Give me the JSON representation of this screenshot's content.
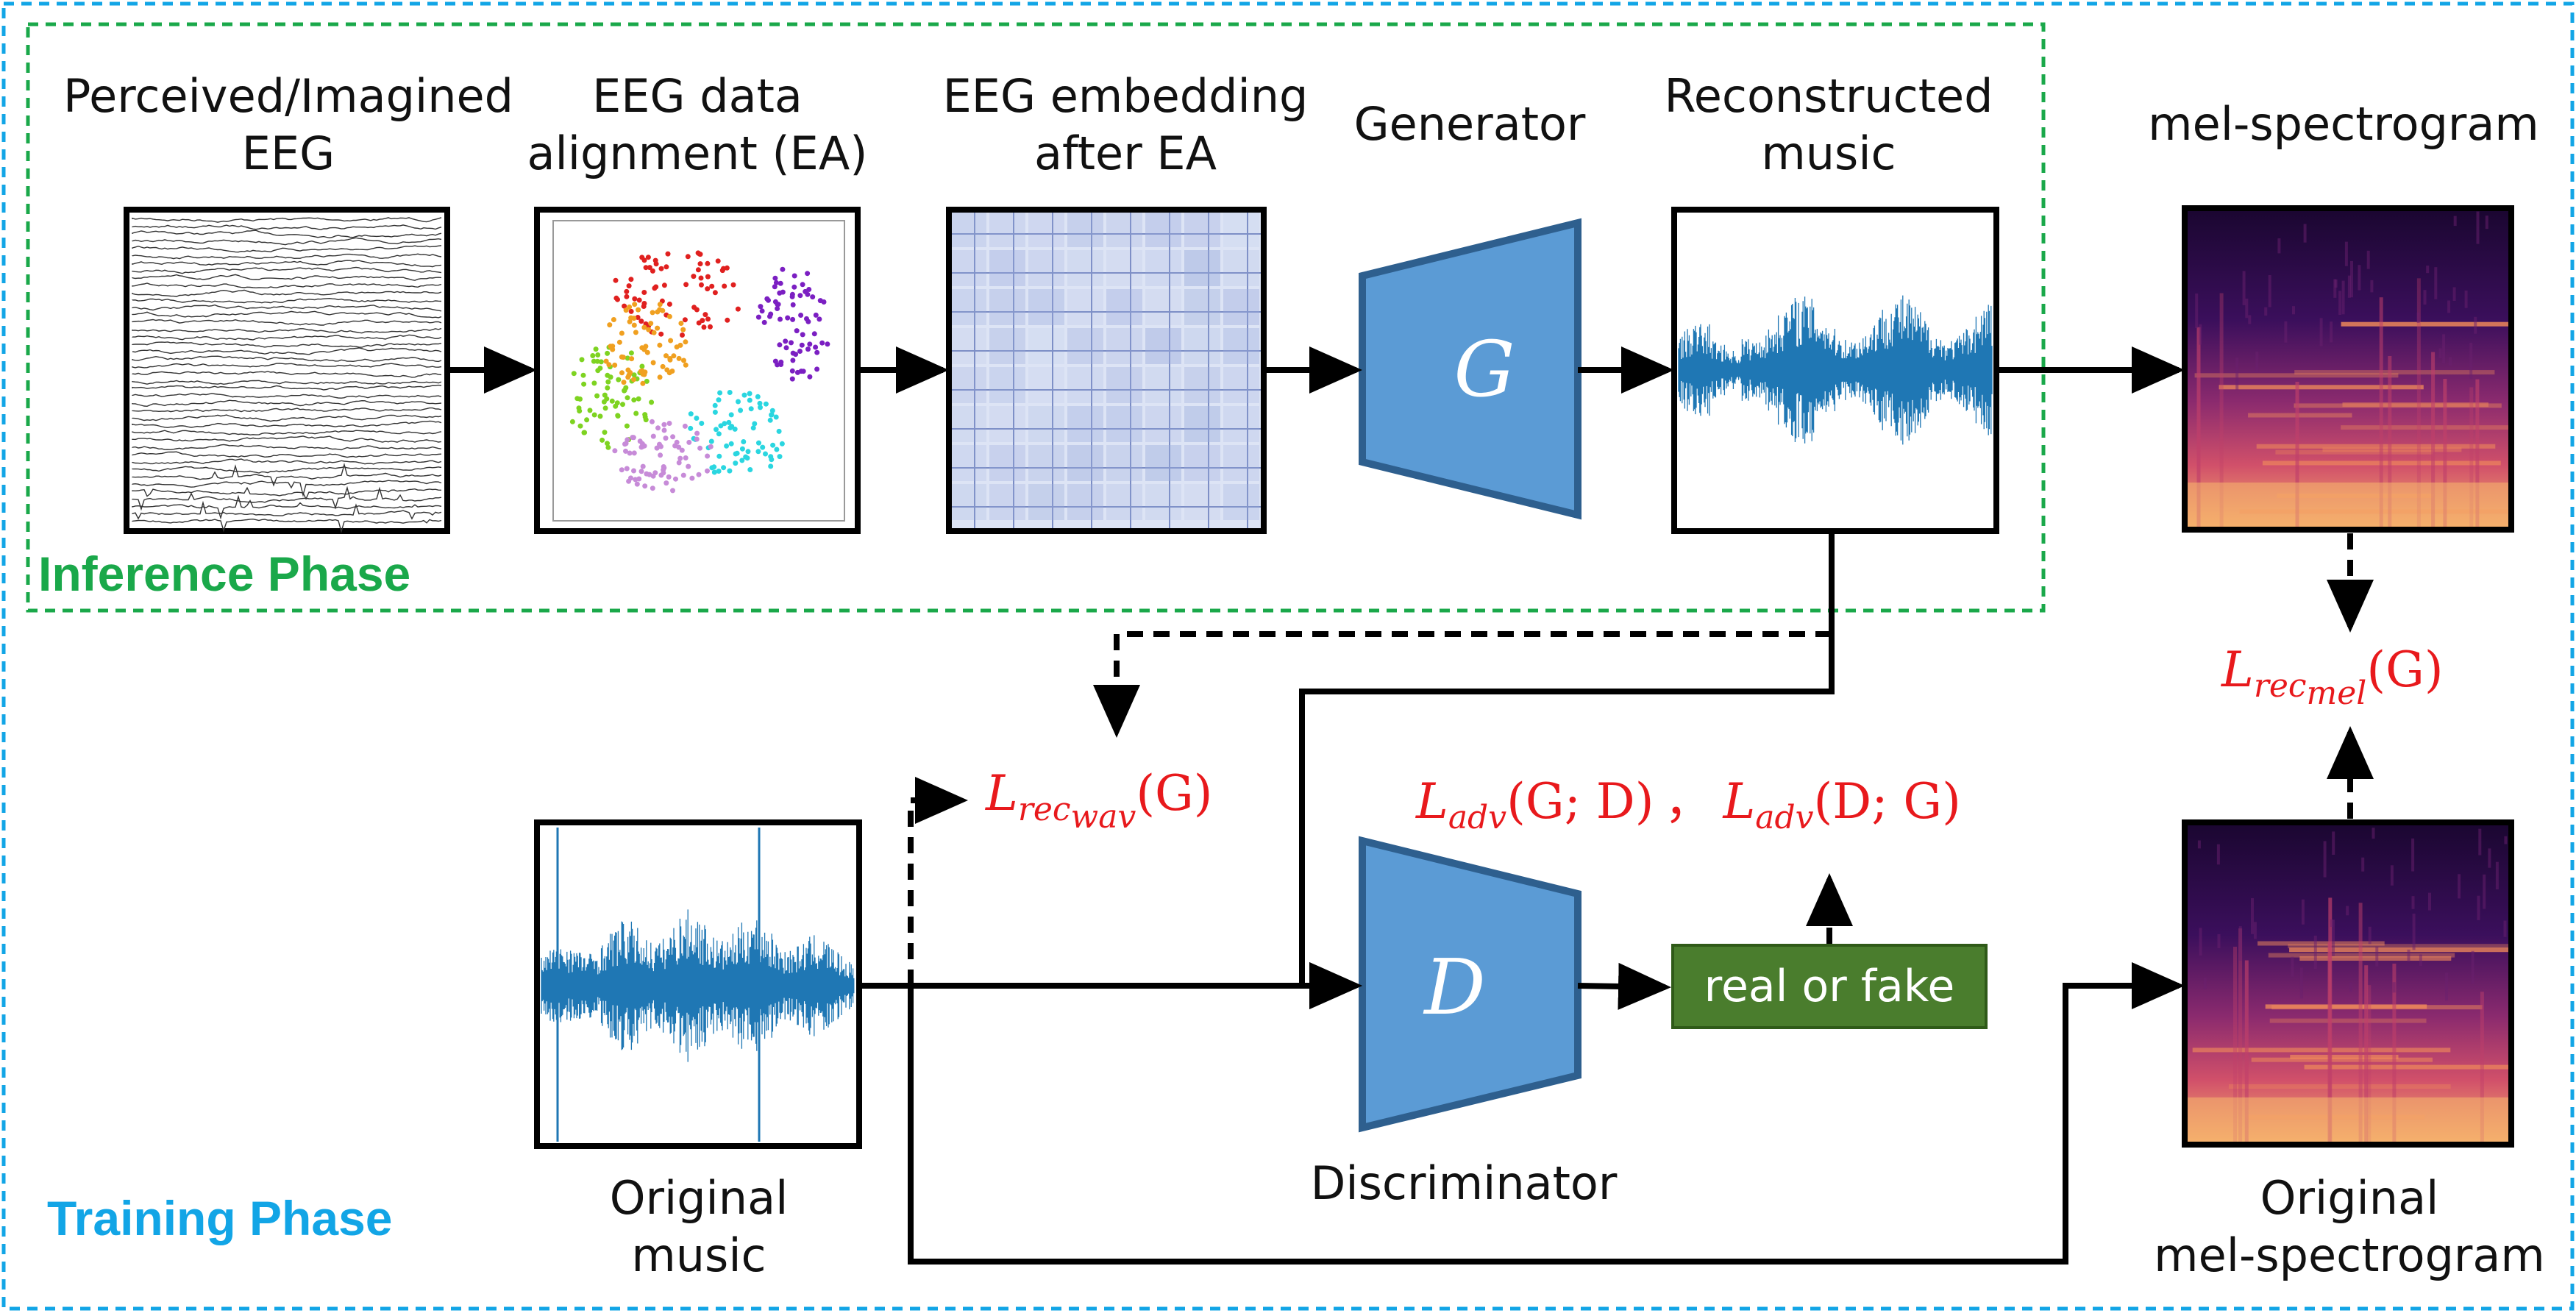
{
  "phases": {
    "inference": {
      "label": "Inference Phase",
      "color": "#1aa84a"
    },
    "training": {
      "label": "Training Phase",
      "color": "#12a5e6"
    }
  },
  "labels": {
    "eeg_line1": "Perceived/Imagined",
    "eeg_line2": "EEG",
    "ea_line1": "EEG data",
    "ea_line2": "alignment (EA)",
    "emb_line1": "EEG embedding",
    "emb_line2": "after EA",
    "generator": "Generator",
    "recon_line1": "Reconstructed",
    "recon_line2": "music",
    "mel_top": "mel-spectrogram",
    "orig_music_line1": "Original",
    "orig_music_line2": "music",
    "discriminator": "Discriminator",
    "orig_mel_line1": "Original",
    "orig_mel_line2": "mel-spectrogram"
  },
  "blocks": {
    "generator_letter": "G",
    "discriminator_letter": "D",
    "real_or_fake": "real or fake"
  },
  "losses": {
    "rec_wav": {
      "main": "L",
      "sub": "rec",
      "subsub": "wav",
      "arg": "(G)"
    },
    "rec_mel": {
      "main": "L",
      "sub": "rec",
      "subsub": "mel",
      "arg": "(G)"
    },
    "adv_g": {
      "main": "L",
      "sub": "adv",
      "arg": "(G; D)"
    },
    "separator": "，",
    "adv_d": {
      "main": "L",
      "sub": "adv",
      "arg": "(D; G)"
    }
  },
  "colors": {
    "block_fill": "#5b9bd5",
    "block_stroke": "#2e5f8e",
    "loss_red": "#e8191c",
    "wave_blue": "#1f77b4",
    "rf_green": "#4a7d2d"
  }
}
